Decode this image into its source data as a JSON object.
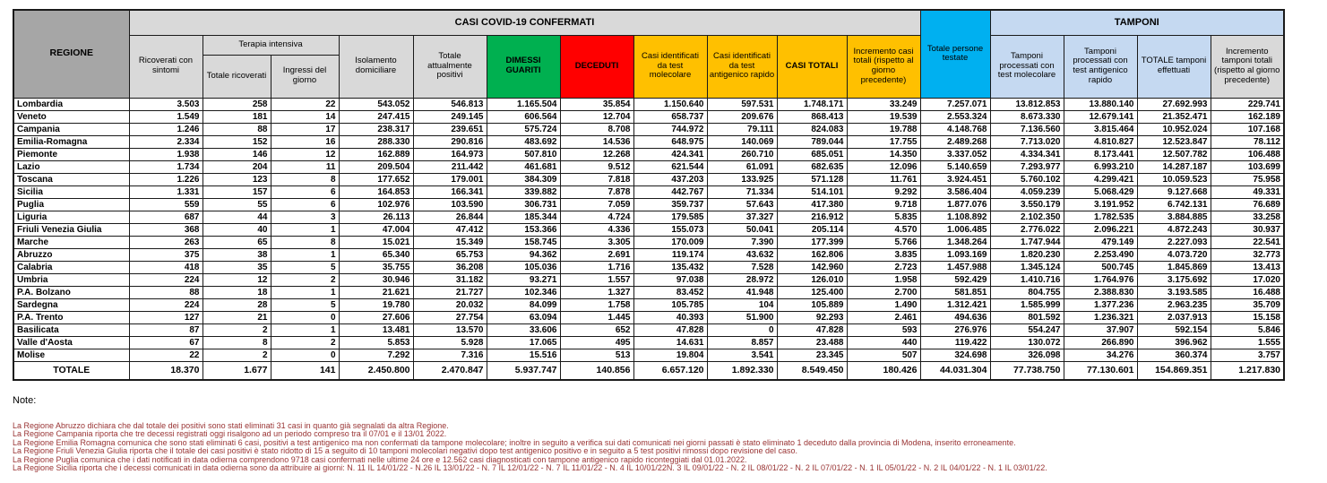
{
  "table": {
    "banner_confermati": "CASI COVID-19 CONFERMATI",
    "banner_tamponi": "TAMPONI",
    "headers": {
      "regione": "REGIONE",
      "ricoverati": "Ricoverati con sintomi",
      "terapia_intensiva": "Terapia intensiva",
      "totale_ricoverati": "Totale ricoverati",
      "ingressi_giorno": "Ingressi del giorno",
      "isolamento": "Isolamento domiciliare",
      "totale_positivi": "Totale attualmente positivi",
      "dimessi": "DIMESSI GUARITI",
      "deceduti": "DECEDUTI",
      "casi_molecolare": "Casi identificati da test molecolare",
      "casi_antigenico": "Casi identificati da test antigenico rapido",
      "casi_totali": "CASI TOTALI",
      "incremento_casi": "Incremento casi totali (rispetto al giorno precedente)",
      "persone_testate": "Totale persone testate",
      "tamponi_molecolare": "Tamponi processati con test molecolare",
      "tamponi_antigenico": "Tamponi processati con test antigenico rapido",
      "totale_tamponi": "TOTALE tamponi effettuati",
      "incremento_tamponi": "Incremento tamponi totali (rispetto al giorno precedente)"
    },
    "rows": [
      [
        "Lombardia",
        "3.503",
        "258",
        "22",
        "543.052",
        "546.813",
        "1.165.504",
        "35.854",
        "1.150.640",
        "597.531",
        "1.748.171",
        "33.249",
        "7.257.071",
        "13.812.853",
        "13.880.140",
        "27.692.993",
        "229.741"
      ],
      [
        "Veneto",
        "1.549",
        "181",
        "14",
        "247.415",
        "249.145",
        "606.564",
        "12.704",
        "658.737",
        "209.676",
        "868.413",
        "19.539",
        "2.553.324",
        "8.673.330",
        "12.679.141",
        "21.352.471",
        "162.189"
      ],
      [
        "Campania",
        "1.246",
        "88",
        "17",
        "238.317",
        "239.651",
        "575.724",
        "8.708",
        "744.972",
        "79.111",
        "824.083",
        "19.788",
        "4.148.768",
        "7.136.560",
        "3.815.464",
        "10.952.024",
        "107.168"
      ],
      [
        "Emilia-Romagna",
        "2.334",
        "152",
        "16",
        "288.330",
        "290.816",
        "483.692",
        "14.536",
        "648.975",
        "140.069",
        "789.044",
        "17.755",
        "2.489.268",
        "7.713.020",
        "4.810.827",
        "12.523.847",
        "78.112"
      ],
      [
        "Piemonte",
        "1.938",
        "146",
        "12",
        "162.889",
        "164.973",
        "507.810",
        "12.268",
        "424.341",
        "260.710",
        "685.051",
        "14.350",
        "3.337.052",
        "4.334.341",
        "8.173.441",
        "12.507.782",
        "106.488"
      ],
      [
        "Lazio",
        "1.734",
        "204",
        "11",
        "209.504",
        "211.442",
        "461.681",
        "9.512",
        "621.544",
        "61.091",
        "682.635",
        "12.096",
        "5.140.659",
        "7.293.977",
        "6.993.210",
        "14.287.187",
        "103.699"
      ],
      [
        "Toscana",
        "1.226",
        "123",
        "8",
        "177.652",
        "179.001",
        "384.309",
        "7.818",
        "437.203",
        "133.925",
        "571.128",
        "11.761",
        "3.924.451",
        "5.760.102",
        "4.299.421",
        "10.059.523",
        "75.958"
      ],
      [
        "Sicilia",
        "1.331",
        "157",
        "6",
        "164.853",
        "166.341",
        "339.882",
        "7.878",
        "442.767",
        "71.334",
        "514.101",
        "9.292",
        "3.586.404",
        "4.059.239",
        "5.068.429",
        "9.127.668",
        "49.331"
      ],
      [
        "Puglia",
        "559",
        "55",
        "6",
        "102.976",
        "103.590",
        "306.731",
        "7.059",
        "359.737",
        "57.643",
        "417.380",
        "9.718",
        "1.877.076",
        "3.550.179",
        "3.191.952",
        "6.742.131",
        "76.689"
      ],
      [
        "Liguria",
        "687",
        "44",
        "3",
        "26.113",
        "26.844",
        "185.344",
        "4.724",
        "179.585",
        "37.327",
        "216.912",
        "5.835",
        "1.108.892",
        "2.102.350",
        "1.782.535",
        "3.884.885",
        "33.258"
      ],
      [
        "Friuli Venezia Giulia",
        "368",
        "40",
        "1",
        "47.004",
        "47.412",
        "153.366",
        "4.336",
        "155.073",
        "50.041",
        "205.114",
        "4.570",
        "1.006.485",
        "2.776.022",
        "2.096.221",
        "4.872.243",
        "30.937"
      ],
      [
        "Marche",
        "263",
        "65",
        "8",
        "15.021",
        "15.349",
        "158.745",
        "3.305",
        "170.009",
        "7.390",
        "177.399",
        "5.766",
        "1.348.264",
        "1.747.944",
        "479.149",
        "2.227.093",
        "22.541"
      ],
      [
        "Abruzzo",
        "375",
        "38",
        "1",
        "65.340",
        "65.753",
        "94.362",
        "2.691",
        "119.174",
        "43.632",
        "162.806",
        "3.835",
        "1.093.169",
        "1.820.230",
        "2.253.490",
        "4.073.720",
        "32.773"
      ],
      [
        "Calabria",
        "418",
        "35",
        "5",
        "35.755",
        "36.208",
        "105.036",
        "1.716",
        "135.432",
        "7.528",
        "142.960",
        "2.723",
        "1.457.988",
        "1.345.124",
        "500.745",
        "1.845.869",
        "13.413"
      ],
      [
        "Umbria",
        "224",
        "12",
        "2",
        "30.946",
        "31.182",
        "93.271",
        "1.557",
        "97.038",
        "28.972",
        "126.010",
        "1.958",
        "592.429",
        "1.410.716",
        "1.764.976",
        "3.175.692",
        "17.020"
      ],
      [
        "P.A. Bolzano",
        "88",
        "18",
        "1",
        "21.621",
        "21.727",
        "102.346",
        "1.327",
        "83.452",
        "41.948",
        "125.400",
        "2.700",
        "581.851",
        "804.755",
        "2.388.830",
        "3.193.585",
        "16.488"
      ],
      [
        "Sardegna",
        "224",
        "28",
        "5",
        "19.780",
        "20.032",
        "84.099",
        "1.758",
        "105.785",
        "104",
        "105.889",
        "1.490",
        "1.312.421",
        "1.585.999",
        "1.377.236",
        "2.963.235",
        "35.709"
      ],
      [
        "P.A. Trento",
        "127",
        "21",
        "0",
        "27.606",
        "27.754",
        "63.094",
        "1.445",
        "40.393",
        "51.900",
        "92.293",
        "2.461",
        "494.636",
        "801.592",
        "1.236.321",
        "2.037.913",
        "15.158"
      ],
      [
        "Basilicata",
        "87",
        "2",
        "1",
        "13.481",
        "13.570",
        "33.606",
        "652",
        "47.828",
        "0",
        "47.828",
        "593",
        "276.976",
        "554.247",
        "37.907",
        "592.154",
        "5.846"
      ],
      [
        "Valle d'Aosta",
        "67",
        "8",
        "2",
        "5.853",
        "5.928",
        "17.065",
        "495",
        "14.631",
        "8.857",
        "23.488",
        "440",
        "119.422",
        "130.072",
        "266.890",
        "396.962",
        "1.555"
      ],
      [
        "Molise",
        "22",
        "2",
        "0",
        "7.292",
        "7.316",
        "15.516",
        "513",
        "19.804",
        "3.541",
        "23.345",
        "507",
        "324.698",
        "326.098",
        "34.276",
        "360.374",
        "3.757"
      ]
    ],
    "total_row": [
      "TOTALE",
      "18.370",
      "1.677",
      "141",
      "2.450.800",
      "2.470.847",
      "5.937.747",
      "140.856",
      "6.657.120",
      "1.892.330",
      "8.549.450",
      "180.426",
      "44.031.304",
      "77.738.750",
      "77.130.601",
      "154.869.351",
      "1.217.830"
    ]
  },
  "notes": {
    "title": "Note:",
    "lines": [
      "La Regione Abruzzo dichiara che dal totale dei positivi sono stati eliminati 31 casi in quanto già segnalati da altra Regione.",
      "La Regione Campania riporta che tre decessi registrati oggi risalgono ad un periodo compreso tra il 07/01 e il 13/01 2022.",
      "La Regione Emilia Romagna comunica che sono stati eliminati 6 casi, positivi a test antigenico ma non confermati da tampone molecolare; inoltre in seguito a verifica sui dati comunicati nei giorni passati è stato eliminato 1 deceduto dalla provincia di Modena, inserito erroneamente.",
      "La Regione Friuli Venezia Giulia riporta che il totale dei casi positivi è stato ridotto di 15 a seguito di 10 tamponi molecolari negativi dopo test antigenico positivo e in seguito a 5 test positivi rimossi dopo revisione del caso.",
      "La Regione Puglia comunica che i dati notificati in data odierna comprendono 9718 casi confermati nelle ultime 24 ore e 12.562 casi diagnosticati con tampone antigenico rapido riconteggiati dal 01.01.2022.",
      "La Regione Sicilia riporta che i decessi comunicati in data odierna sono da attribuire ai giorni:  N. 11 IL 14/01/22 - N.26 IL 13/01/22 - N. 7 IL 12/01/22 - N. 7 IL 11/01/22 - N. 4 IL 10/01/22N. 3 IL 09/01/22 - N. 2 IL 08/01/22 -  N. 2 IL 07/01/22 -  N. 1 IL 05/01/22 -  N. 2 IL 04/01/22 -  N. 1 IL 03/01/22."
    ]
  },
  "colors": {
    "header_dark_gray": "#a6a6a6",
    "header_light_gray": "#d9d9d9",
    "total_row_gray": "#bfbfbf",
    "green_recovered": "#00b050",
    "red_deceased": "#ff0000",
    "yellow_cases": "#ffc000",
    "cyan_tested": "#00b0f0",
    "light_blue_swabs": "#c5d9f1",
    "note_text": "#993333"
  }
}
